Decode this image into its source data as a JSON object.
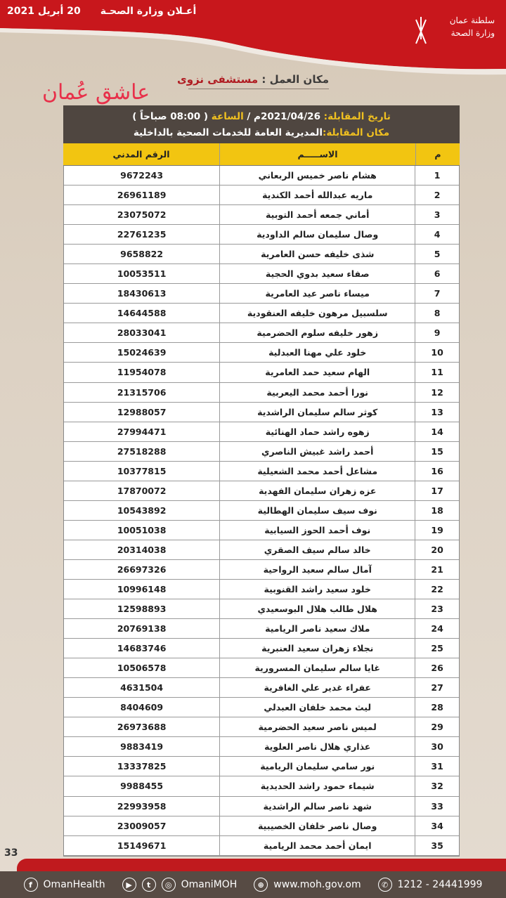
{
  "header": {
    "date": "20 أبريل 2021",
    "title": "أعـلان وزارة الصحـة",
    "logo_line1": "سلطنة عمان",
    "logo_line2": "وزارة الصحة"
  },
  "work": {
    "label": "مكان العمل :",
    "value": "مستشفى نزوى"
  },
  "watermark": "عاشق عُمان",
  "interview": {
    "date_label": "تاريخ المقابلة:",
    "date": "2021/04/26م",
    "sep": "/",
    "time_label": "الساعة",
    "time": "( 08:00 صباحاً )",
    "place_label": "مكان المقابلة:",
    "place": "المديرية العامة للخدمات الصحية  بالداخلية"
  },
  "columns": [
    "م",
    "الاســـــم",
    "الرقم المدني"
  ],
  "rows": [
    [
      "1",
      "هشام ناصر خميس الربعاني",
      "9672243"
    ],
    [
      "2",
      "ماريه عبدالله أحمد الكندية",
      "26961189"
    ],
    [
      "3",
      "أماني جمعه أحمد التوبية",
      "23075072"
    ],
    [
      "4",
      "وصال سليمان سالم الداودية",
      "22761235"
    ],
    [
      "5",
      "شذى خليفه حسن العامرية",
      "9658822"
    ],
    [
      "6",
      "صفاء سعيد بدوي الحجية",
      "10053511"
    ],
    [
      "7",
      "ميساء ناصر عيد العامرية",
      "18430613"
    ],
    [
      "8",
      "سلسبيل مرهون خليفه العنقودية",
      "14644588"
    ],
    [
      "9",
      "زهور خليفه سلوم الحضرمية",
      "28033041"
    ],
    [
      "10",
      "خلود علي مهنا العبدلية",
      "15024639"
    ],
    [
      "11",
      "الهام سعيد حمد العامرية",
      "11954078"
    ],
    [
      "12",
      "نورا أحمد محمد اليعربية",
      "21315706"
    ],
    [
      "13",
      "كوثر سالم سليمان الراشدية",
      "12988057"
    ],
    [
      "14",
      "زهوه راشد حماد الهنائية",
      "27994471"
    ],
    [
      "15",
      "أحمد راشد غبيش الناصري",
      "27518288"
    ],
    [
      "16",
      "مشاعل أحمد محمد الشعيلية",
      "10377815"
    ],
    [
      "17",
      "عزه زهران سليمان الفهدية",
      "17870072"
    ],
    [
      "18",
      "نوف سيف سليمان الهطالية",
      "10543892"
    ],
    [
      "19",
      "نوف أحمد الحوز السيابية",
      "10051038"
    ],
    [
      "20",
      "خالد سالم سيف الصقري",
      "20314038"
    ],
    [
      "21",
      "آمال سالم سعيد الرواحية",
      "26697326"
    ],
    [
      "22",
      "خلود سعيد راشد القنوبية",
      "10996148"
    ],
    [
      "23",
      "هلال طالب هلال البوسعيدي",
      "12598893"
    ],
    [
      "24",
      "ملاك سعيد ناصر الريامية",
      "20769138"
    ],
    [
      "25",
      "نجلاء زهران سعيد العنبرية",
      "14683746"
    ],
    [
      "26",
      "غايا سالم سليمان المسرورية",
      "10506578"
    ],
    [
      "27",
      "عفراء غدير علي الغافرية",
      "4631504"
    ],
    [
      "28",
      "ليث محمد خلفان العبدلي",
      "8404609"
    ],
    [
      "29",
      "لميس ناصر سعيد الحضرمية",
      "26973688"
    ],
    [
      "30",
      "عذاري هلال ناصر العلوية",
      "9883419"
    ],
    [
      "31",
      "نور سامي سليمان الريامية",
      "13337825"
    ],
    [
      "32",
      "شيماء حمود راشد الحديدية",
      "9988455"
    ],
    [
      "33",
      "شهد ناصر سالم الراشدية",
      "22993958"
    ],
    [
      "34",
      "وصال ناصر خلفان الخصيبية",
      "23009057"
    ],
    [
      "35",
      "ايمان أحمد محمد الريامية",
      "15149671"
    ]
  ],
  "page_number": "33",
  "footer": {
    "facebook": "OmanHealth",
    "social": "OmaniMOH",
    "website": "www.moh.gov.om",
    "phone": "1212 - 24441999"
  },
  "colors": {
    "red": "#c01a1e",
    "dark": "#4f4640",
    "yellow": "#f2c511"
  }
}
